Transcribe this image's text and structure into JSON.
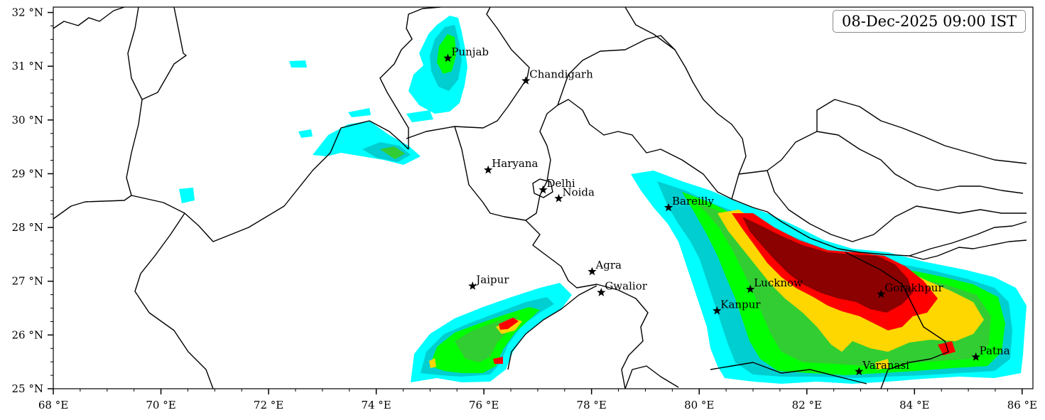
{
  "timestamp": "08-Dec-2025 09:00 IST",
  "map": {
    "lon_range": [
      68,
      86.2
    ],
    "lat_range": [
      25,
      32.1
    ],
    "x_ticks": [
      {
        "lon": 68,
        "label": "68 °E"
      },
      {
        "lon": 70,
        "label": "70 °E"
      },
      {
        "lon": 72,
        "label": "72 °E"
      },
      {
        "lon": 74,
        "label": "74 °E"
      },
      {
        "lon": 76,
        "label": "76 °E"
      },
      {
        "lon": 78,
        "label": "78 °E"
      },
      {
        "lon": 80,
        "label": "80 °E"
      },
      {
        "lon": 82,
        "label": "82 °E"
      },
      {
        "lon": 84,
        "label": "84 °E"
      },
      {
        "lon": 86,
        "label": "86 °E"
      }
    ],
    "y_ticks": [
      {
        "lat": 25,
        "label": "25 °N"
      },
      {
        "lat": 26,
        "label": "26 °N"
      },
      {
        "lat": 27,
        "label": "27 °N"
      },
      {
        "lat": 28,
        "label": "28 °N"
      },
      {
        "lat": 29,
        "label": "29 °N"
      },
      {
        "lat": 30,
        "label": "30 °N"
      },
      {
        "lat": 31,
        "label": "31 °N"
      },
      {
        "lat": 32,
        "label": "32 °N"
      }
    ],
    "fill_colors": [
      "#00ffff",
      "#00ced1",
      "#00ff00",
      "#32cd32",
      "#ffd700",
      "#ff0000",
      "#8b0000"
    ],
    "cities": [
      {
        "name": "Punjab",
        "lon": 75.33,
        "lat": 31.15
      },
      {
        "name": "Chandigarh",
        "lon": 76.78,
        "lat": 30.73
      },
      {
        "name": "Haryana",
        "lon": 76.08,
        "lat": 29.07
      },
      {
        "name": "Delhi",
        "lon": 77.1,
        "lat": 28.7
      },
      {
        "name": "Noida",
        "lon": 77.39,
        "lat": 28.54
      },
      {
        "name": "Bareilly",
        "lon": 79.43,
        "lat": 28.37
      },
      {
        "name": "Agra",
        "lon": 78.01,
        "lat": 27.18
      },
      {
        "name": "Jaipur",
        "lon": 75.79,
        "lat": 26.91
      },
      {
        "name": "Gwalior",
        "lon": 78.18,
        "lat": 26.79
      },
      {
        "name": "Lucknow",
        "lon": 80.95,
        "lat": 26.85
      },
      {
        "name": "Gorakhpur",
        "lon": 83.38,
        "lat": 26.76
      },
      {
        "name": "Kanpur",
        "lon": 80.33,
        "lat": 26.45
      },
      {
        "name": "Patna",
        "lon": 85.14,
        "lat": 25.59
      },
      {
        "name": "Varanasi",
        "lon": 82.97,
        "lat": 25.32
      }
    ]
  }
}
